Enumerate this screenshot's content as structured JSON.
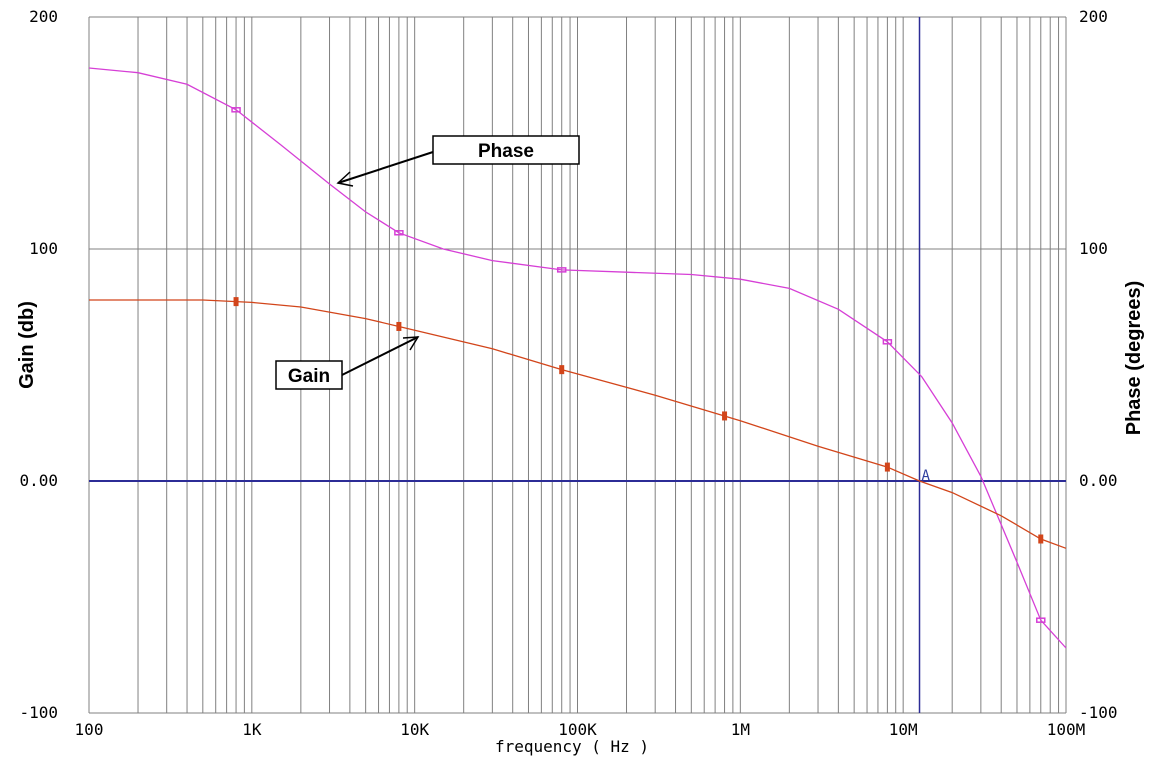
{
  "chart_data": {
    "type": "line",
    "xlabel": "frequency ( Hz )",
    "ylabel_left": "Gain (db)",
    "ylabel_right": "Phase (degrees)",
    "x_scale": "log",
    "xlim": [
      100,
      100000000
    ],
    "ylim": [
      -100,
      200
    ],
    "x_tick_labels": [
      "100",
      "1K",
      "10K",
      "100K",
      "1M",
      "10M",
      "100M"
    ],
    "x_tick_values": [
      100,
      1000,
      10000,
      100000,
      1000000,
      10000000,
      100000000
    ],
    "y_tick_labels": [
      "-100",
      "0.00",
      "100",
      "200"
    ],
    "y_tick_values": [
      -100,
      0,
      100,
      200
    ],
    "grid": true,
    "zero_line": 0,
    "cursor": {
      "label": "A",
      "x": 12600000
    },
    "series": [
      {
        "name": "Phase",
        "color": "#d63fd6",
        "x": [
          100,
          200,
          400,
          800,
          1500,
          3000,
          5000,
          8000,
          15000,
          30000,
          80000,
          200000,
          500000,
          1000000,
          2000000,
          4000000,
          8000000,
          13000000,
          20000000,
          30000000,
          50000000,
          70000000,
          100000000
        ],
        "values": [
          178,
          176,
          171,
          160,
          145,
          128,
          116,
          107,
          100,
          95,
          91,
          90,
          89,
          87,
          83,
          74,
          60,
          45,
          25,
          2,
          -35,
          -60,
          -72
        ],
        "markers_x": [
          800,
          8000,
          80000,
          8000000,
          70000000
        ]
      },
      {
        "name": "Gain",
        "color": "#d2451a",
        "x": [
          100,
          500,
          1000,
          2000,
          5000,
          10000,
          30000,
          80000,
          300000,
          1000000,
          3000000,
          8000000,
          12600000,
          20000000,
          40000000,
          70000000,
          100000000
        ],
        "values": [
          78,
          78,
          77,
          75,
          70,
          65,
          57,
          48,
          37,
          26,
          15,
          6,
          0,
          -5,
          -15,
          -25,
          -29
        ],
        "markers_x": [
          800,
          8000,
          80000,
          800000,
          8000000,
          70000000
        ]
      }
    ],
    "annotations": [
      {
        "text": "Phase"
      },
      {
        "text": "Gain"
      }
    ],
    "colors": {
      "grid": "#808080",
      "zero_line": "#2c2c96",
      "cursor": "#2c2c96"
    }
  }
}
